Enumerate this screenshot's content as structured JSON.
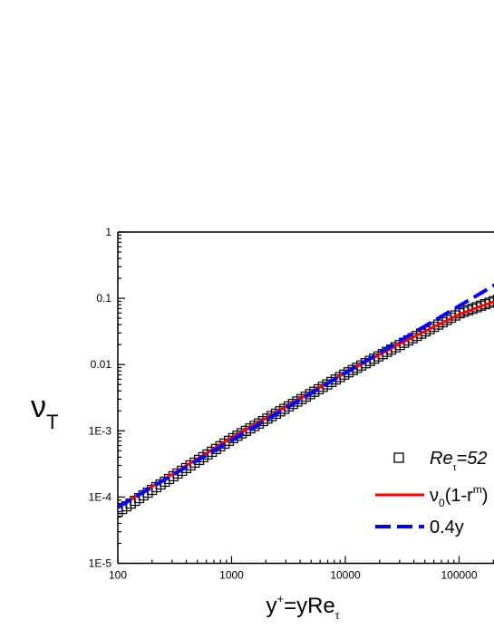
{
  "chart_data": {
    "type": "line",
    "title": "",
    "xlabel": {
      "main": "y",
      "sup": "+",
      "rest": "=yRe",
      "sub": "τ"
    },
    "ylabel": {
      "main": "ν",
      "sub": "T"
    },
    "xscale": "log",
    "yscale": "log",
    "xlim": [
      100,
      220000
    ],
    "ylim": [
      1e-05,
      1
    ],
    "x_ticks": [
      100,
      1000,
      10000,
      100000
    ],
    "x_tick_labels": [
      "100",
      "1000",
      "10000",
      "100000"
    ],
    "y_ticks": [
      1e-05,
      0.0001,
      0.001,
      0.01,
      0.1,
      1
    ],
    "y_tick_labels": [
      "1E-5",
      "1E-4",
      "1E-3",
      "0.01",
      "0.1",
      "1"
    ],
    "grid": false,
    "legend_position": "bottom-right",
    "series": [
      {
        "name": "Re =52",
        "name_parts": {
          "main": "Re",
          "sub": "τ",
          "rest": "=52"
        },
        "style": "square-markers",
        "color": "#000000",
        "x_range": [
          100,
          220000
        ],
        "point_count": 90,
        "y_at": {
          "100": 6e-05,
          "1000": 0.00075,
          "10000": 0.0072,
          "100000": 0.059,
          "200000": 0.09
        }
      },
      {
        "name": "ν0(1-r^m)",
        "name_parts": {
          "main": "ν",
          "sub": "0",
          "rest": "(1-r",
          "sup": "m",
          "tail": ")"
        },
        "style": "solid",
        "color": "#ff0000",
        "x": [
          100,
          1000,
          10000,
          30000,
          60000,
          100000,
          150000,
          220000
        ],
        "y": [
          7e-05,
          0.00078,
          0.0075,
          0.0205,
          0.037,
          0.057,
          0.074,
          0.094
        ]
      },
      {
        "name": "0.4y",
        "style": "dashed",
        "color": "#0000ff",
        "x": [
          100,
          220000
        ],
        "y": [
          7e-05,
          0.17
        ]
      }
    ]
  }
}
